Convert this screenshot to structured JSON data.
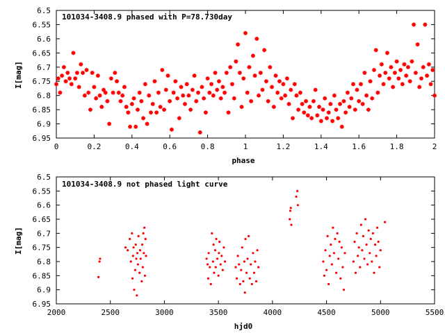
{
  "chart_data": [
    {
      "type": "scatter",
      "title": "101034-3408.9 phased with P=78.730day",
      "xlabel": "phase",
      "ylabel": "I[mag]",
      "xlim": [
        0,
        2
      ],
      "ylim": [
        6.5,
        6.95
      ],
      "y_inverted": true,
      "grid": false,
      "marker": "star",
      "color": "#ff0000",
      "x_ticks": [
        0,
        0.2,
        0.4,
        0.6,
        0.8,
        1,
        1.2,
        1.4,
        1.6,
        1.8,
        2
      ],
      "x_tick_labels": [
        "0",
        "0.2",
        "0.4",
        "0.6",
        "0.8",
        "1",
        "1.2",
        "1.4",
        "1.6",
        "1.8",
        "2"
      ],
      "y_ticks": [
        6.5,
        6.55,
        6.6,
        6.65,
        6.7,
        6.75,
        6.8,
        6.85,
        6.9,
        6.95
      ],
      "y_tick_labels": [
        "6.5",
        "6.55",
        "6.6",
        "6.65",
        "6.7",
        "6.75",
        "6.8",
        "6.85",
        "6.9",
        "6.95"
      ],
      "points": [
        [
          0.0,
          6.76
        ],
        [
          0.01,
          6.74
        ],
        [
          0.02,
          6.79
        ],
        [
          0.03,
          6.73
        ],
        [
          0.04,
          6.7
        ],
        [
          0.05,
          6.75
        ],
        [
          0.06,
          6.72
        ],
        [
          0.07,
          6.74
        ],
        [
          0.08,
          6.76
        ],
        [
          0.09,
          6.65
        ],
        [
          0.1,
          6.74
        ],
        [
          0.11,
          6.72
        ],
        [
          0.12,
          6.77
        ],
        [
          0.13,
          6.69
        ],
        [
          0.14,
          6.72
        ],
        [
          0.15,
          6.8
        ],
        [
          0.16,
          6.71
        ],
        [
          0.17,
          6.79
        ],
        [
          0.18,
          6.85
        ],
        [
          0.19,
          6.72
        ],
        [
          0.2,
          6.77
        ],
        [
          0.21,
          6.81
        ],
        [
          0.22,
          6.73
        ],
        [
          0.23,
          6.8
        ],
        [
          0.24,
          6.84
        ],
        [
          0.25,
          6.78
        ],
        [
          0.26,
          6.79
        ],
        [
          0.27,
          6.82
        ],
        [
          0.28,
          6.9
        ],
        [
          0.29,
          6.74
        ],
        [
          0.3,
          6.79
        ],
        [
          0.31,
          6.72
        ],
        [
          0.32,
          6.75
        ],
        [
          0.33,
          6.79
        ],
        [
          0.34,
          6.82
        ],
        [
          0.35,
          6.8
        ],
        [
          0.36,
          6.77
        ],
        [
          0.37,
          6.84
        ],
        [
          0.38,
          6.86
        ],
        [
          0.39,
          6.91
        ],
        [
          0.4,
          6.83
        ],
        [
          0.41,
          6.81
        ],
        [
          0.42,
          6.91
        ],
        [
          0.43,
          6.85
        ],
        [
          0.44,
          6.79
        ],
        [
          0.45,
          6.82
        ],
        [
          0.46,
          6.88
        ],
        [
          0.47,
          6.76
        ],
        [
          0.48,
          6.9
        ],
        [
          0.49,
          6.8
        ],
        [
          0.5,
          6.86
        ],
        [
          0.51,
          6.83
        ],
        [
          0.52,
          6.75
        ],
        [
          0.53,
          6.86
        ],
        [
          0.54,
          6.79
        ],
        [
          0.55,
          6.84
        ],
        [
          0.56,
          6.71
        ],
        [
          0.57,
          6.85
        ],
        [
          0.58,
          6.78
        ],
        [
          0.59,
          6.73
        ],
        [
          0.6,
          6.82
        ],
        [
          0.61,
          6.92
        ],
        [
          0.62,
          6.79
        ],
        [
          0.63,
          6.75
        ],
        [
          0.64,
          6.81
        ],
        [
          0.65,
          6.88
        ],
        [
          0.66,
          6.77
        ],
        [
          0.67,
          6.8
        ],
        [
          0.68,
          6.83
        ],
        [
          0.69,
          6.76
        ],
        [
          0.7,
          6.8
        ],
        [
          0.71,
          6.85
        ],
        [
          0.72,
          6.78
        ],
        [
          0.73,
          6.73
        ],
        [
          0.74,
          6.82
        ],
        [
          0.75,
          6.79
        ],
        [
          0.76,
          6.93
        ],
        [
          0.77,
          6.77
        ],
        [
          0.78,
          6.81
        ],
        [
          0.79,
          6.86
        ],
        [
          0.8,
          6.74
        ],
        [
          0.81,
          6.79
        ],
        [
          0.82,
          6.76
        ],
        [
          0.83,
          6.8
        ],
        [
          0.84,
          6.72
        ],
        [
          0.85,
          6.78
        ],
        [
          0.86,
          6.75
        ],
        [
          0.87,
          6.81
        ],
        [
          0.88,
          6.77
        ],
        [
          0.89,
          6.79
        ],
        [
          0.9,
          6.72
        ],
        [
          0.91,
          6.86
        ],
        [
          0.92,
          6.7
        ],
        [
          0.93,
          6.76
        ],
        [
          0.94,
          6.81
        ],
        [
          0.95,
          6.68
        ],
        [
          0.96,
          6.62
        ],
        [
          0.97,
          6.72
        ],
        [
          0.98,
          6.84
        ],
        [
          0.99,
          6.74
        ],
        [
          1.0,
          6.58
        ],
        [
          1.01,
          6.79
        ],
        [
          1.02,
          6.7
        ],
        [
          1.03,
          6.82
        ],
        [
          1.04,
          6.66
        ],
        [
          1.05,
          6.73
        ],
        [
          1.06,
          6.6
        ],
        [
          1.07,
          6.8
        ],
        [
          1.08,
          6.72
        ],
        [
          1.09,
          6.78
        ],
        [
          1.1,
          6.64
        ],
        [
          1.11,
          6.75
        ],
        [
          1.12,
          6.82
        ],
        [
          1.13,
          6.7
        ],
        [
          1.14,
          6.77
        ],
        [
          1.15,
          6.84
        ],
        [
          1.16,
          6.73
        ],
        [
          1.17,
          6.79
        ],
        [
          1.18,
          6.75
        ],
        [
          1.19,
          6.81
        ],
        [
          1.2,
          6.76
        ],
        [
          1.21,
          6.8
        ],
        [
          1.22,
          6.74
        ],
        [
          1.23,
          6.83
        ],
        [
          1.24,
          6.78
        ],
        [
          1.25,
          6.88
        ],
        [
          1.26,
          6.76
        ],
        [
          1.27,
          6.8
        ],
        [
          1.28,
          6.85
        ],
        [
          1.29,
          6.79
        ],
        [
          1.3,
          6.83
        ],
        [
          1.31,
          6.86
        ],
        [
          1.32,
          6.82
        ],
        [
          1.33,
          6.87
        ],
        [
          1.34,
          6.84
        ],
        [
          1.35,
          6.88
        ],
        [
          1.36,
          6.82
        ],
        [
          1.37,
          6.78
        ],
        [
          1.38,
          6.87
        ],
        [
          1.39,
          6.84
        ],
        [
          1.4,
          6.89
        ],
        [
          1.41,
          6.85
        ],
        [
          1.42,
          6.81
        ],
        [
          1.43,
          6.88
        ],
        [
          1.44,
          6.86
        ],
        [
          1.45,
          6.83
        ],
        [
          1.46,
          6.89
        ],
        [
          1.47,
          6.8
        ],
        [
          1.48,
          6.85
        ],
        [
          1.49,
          6.88
        ],
        [
          1.5,
          6.83
        ],
        [
          1.51,
          6.91
        ],
        [
          1.52,
          6.82
        ],
        [
          1.53,
          6.86
        ],
        [
          1.54,
          6.79
        ],
        [
          1.55,
          6.84
        ],
        [
          1.56,
          6.81
        ],
        [
          1.57,
          6.76
        ],
        [
          1.58,
          6.85
        ],
        [
          1.59,
          6.78
        ],
        [
          1.6,
          6.82
        ],
        [
          1.61,
          6.76
        ],
        [
          1.62,
          6.83
        ],
        [
          1.63,
          6.72
        ],
        [
          1.64,
          6.8
        ],
        [
          1.65,
          6.85
        ],
        [
          1.66,
          6.75
        ],
        [
          1.67,
          6.81
        ],
        [
          1.68,
          6.71
        ],
        [
          1.69,
          6.64
        ],
        [
          1.7,
          6.79
        ],
        [
          1.71,
          6.73
        ],
        [
          1.72,
          6.69
        ],
        [
          1.73,
          6.76
        ],
        [
          1.74,
          6.72
        ],
        [
          1.75,
          6.65
        ],
        [
          1.76,
          6.74
        ],
        [
          1.77,
          6.7
        ],
        [
          1.78,
          6.77
        ],
        [
          1.79,
          6.72
        ],
        [
          1.8,
          6.68
        ],
        [
          1.81,
          6.74
        ],
        [
          1.82,
          6.71
        ],
        [
          1.83,
          6.76
        ],
        [
          1.84,
          6.69
        ],
        [
          1.85,
          6.73
        ],
        [
          1.86,
          6.7
        ],
        [
          1.87,
          6.75
        ],
        [
          1.88,
          6.68
        ],
        [
          1.89,
          6.55
        ],
        [
          1.9,
          6.72
        ],
        [
          1.91,
          6.62
        ],
        [
          1.92,
          6.77
        ],
        [
          1.93,
          6.74
        ],
        [
          1.94,
          6.7
        ],
        [
          1.95,
          6.55
        ],
        [
          1.96,
          6.73
        ],
        [
          1.97,
          6.69
        ],
        [
          1.98,
          6.76
        ],
        [
          1.99,
          6.71
        ],
        [
          2.0,
          6.8
        ]
      ]
    },
    {
      "type": "scatter",
      "title": "101034-3408.9 not phased light curve",
      "xlabel": "hjd0",
      "ylabel": "I[mag]",
      "xlim": [
        2000,
        5500
      ],
      "ylim": [
        6.5,
        6.95
      ],
      "y_inverted": true,
      "grid": false,
      "marker": "dot",
      "color": "#ff0000",
      "x_ticks": [
        2000,
        2500,
        3000,
        3500,
        4000,
        4500,
        5000,
        5500
      ],
      "x_tick_labels": [
        "2000",
        "2500",
        "3000",
        "3500",
        "4000",
        "4500",
        "5000",
        "5500"
      ],
      "y_ticks": [
        6.5,
        6.55,
        6.6,
        6.65,
        6.7,
        6.75,
        6.8,
        6.85,
        6.9,
        6.95
      ],
      "y_tick_labels": [
        "6.5",
        "6.55",
        "6.6",
        "6.65",
        "6.7",
        "6.75",
        "6.8",
        "6.85",
        "6.9",
        "6.95"
      ],
      "points": [
        [
          2390,
          6.855
        ],
        [
          2400,
          6.8
        ],
        [
          2405,
          6.79
        ],
        [
          2640,
          6.75
        ],
        [
          2660,
          6.76
        ],
        [
          2680,
          6.72
        ],
        [
          2690,
          6.8
        ],
        [
          2700,
          6.7
        ],
        [
          2705,
          6.86
        ],
        [
          2710,
          6.78
        ],
        [
          2715,
          6.75
        ],
        [
          2720,
          6.9
        ],
        [
          2730,
          6.83
        ],
        [
          2735,
          6.74
        ],
        [
          2740,
          6.79
        ],
        [
          2745,
          6.92
        ],
        [
          2750,
          6.77
        ],
        [
          2755,
          6.81
        ],
        [
          2760,
          6.71
        ],
        [
          2770,
          6.84
        ],
        [
          2775,
          6.76
        ],
        [
          2780,
          6.79
        ],
        [
          2790,
          6.87
        ],
        [
          2795,
          6.74
        ],
        [
          2800,
          6.82
        ],
        [
          2805,
          6.7
        ],
        [
          2810,
          6.77
        ],
        [
          2815,
          6.68
        ],
        [
          2820,
          6.85
        ],
        [
          2825,
          6.72
        ],
        [
          2830,
          6.78
        ],
        [
          3390,
          6.79
        ],
        [
          3400,
          6.81
        ],
        [
          3405,
          6.86
        ],
        [
          3410,
          6.77
        ],
        [
          3420,
          6.82
        ],
        [
          3430,
          6.88
        ],
        [
          3440,
          6.7
        ],
        [
          3450,
          6.8
        ],
        [
          3455,
          6.74
        ],
        [
          3460,
          6.84
        ],
        [
          3470,
          6.76
        ],
        [
          3475,
          6.82
        ],
        [
          3480,
          6.72
        ],
        [
          3490,
          6.79
        ],
        [
          3500,
          6.85
        ],
        [
          3505,
          6.77
        ],
        [
          3510,
          6.73
        ],
        [
          3520,
          6.81
        ],
        [
          3530,
          6.78
        ],
        [
          3540,
          6.83
        ],
        [
          3550,
          6.75
        ],
        [
          3560,
          6.8
        ],
        [
          3660,
          6.82
        ],
        [
          3670,
          6.86
        ],
        [
          3680,
          6.78
        ],
        [
          3690,
          6.81
        ],
        [
          3700,
          6.88
        ],
        [
          3710,
          6.83
        ],
        [
          3720,
          6.75
        ],
        [
          3730,
          6.87
        ],
        [
          3740,
          6.8
        ],
        [
          3745,
          6.91
        ],
        [
          3750,
          6.72
        ],
        [
          3760,
          6.84
        ],
        [
          3770,
          6.79
        ],
        [
          3780,
          6.71
        ],
        [
          3790,
          6.86
        ],
        [
          3800,
          6.81
        ],
        [
          3810,
          6.88
        ],
        [
          3820,
          6.77
        ],
        [
          3830,
          6.84
        ],
        [
          3840,
          6.8
        ],
        [
          3850,
          6.87
        ],
        [
          3860,
          6.76
        ],
        [
          3870,
          6.82
        ],
        [
          4160,
          6.65
        ],
        [
          4165,
          6.62
        ],
        [
          4170,
          6.61
        ],
        [
          4175,
          6.67
        ],
        [
          4220,
          6.57
        ],
        [
          4230,
          6.55
        ],
        [
          4235,
          6.6
        ],
        [
          4470,
          6.8
        ],
        [
          4480,
          6.85
        ],
        [
          4490,
          6.76
        ],
        [
          4500,
          6.83
        ],
        [
          4510,
          6.71
        ],
        [
          4520,
          6.88
        ],
        [
          4530,
          6.78
        ],
        [
          4540,
          6.74
        ],
        [
          4550,
          6.81
        ],
        [
          4560,
          6.68
        ],
        [
          4570,
          6.77
        ],
        [
          4580,
          6.72
        ],
        [
          4590,
          6.84
        ],
        [
          4600,
          6.7
        ],
        [
          4610,
          6.79
        ],
        [
          4620,
          6.73
        ],
        [
          4630,
          6.86
        ],
        [
          4640,
          6.75
        ],
        [
          4650,
          6.82
        ],
        [
          4660,
          6.9
        ],
        [
          4670,
          6.77
        ],
        [
          4750,
          6.8
        ],
        [
          4760,
          6.73
        ],
        [
          4770,
          6.84
        ],
        [
          4780,
          6.7
        ],
        [
          4790,
          6.78
        ],
        [
          4800,
          6.75
        ],
        [
          4810,
          6.82
        ],
        [
          4820,
          6.67
        ],
        [
          4830,
          6.76
        ],
        [
          4840,
          6.71
        ],
        [
          4850,
          6.79
        ],
        [
          4860,
          6.65
        ],
        [
          4870,
          6.74
        ],
        [
          4880,
          6.81
        ],
        [
          4890,
          6.69
        ],
        [
          4900,
          6.77
        ],
        [
          4910,
          6.72
        ],
        [
          4920,
          6.8
        ],
        [
          4930,
          6.7
        ],
        [
          4940,
          6.84
        ],
        [
          4950,
          6.74
        ],
        [
          4960,
          6.78
        ],
        [
          4970,
          6.68
        ],
        [
          4980,
          6.73
        ],
        [
          4990,
          6.82
        ],
        [
          5000,
          6.76
        ],
        [
          5040,
          6.66
        ]
      ]
    }
  ]
}
